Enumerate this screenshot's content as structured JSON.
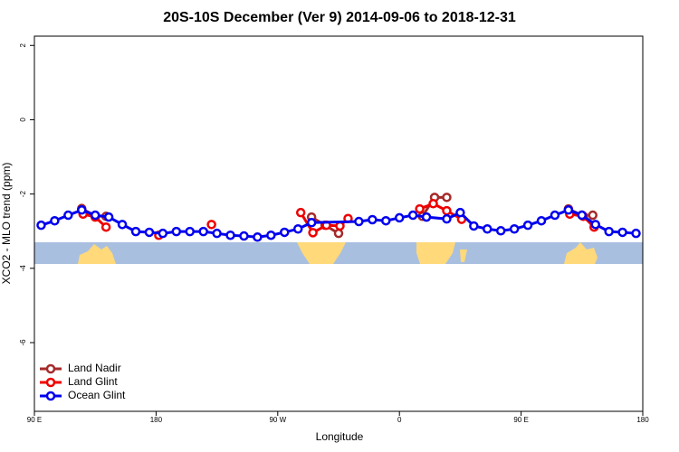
{
  "chart_data": {
    "type": "line",
    "title": "20S-10S December (Ver 9)   2014-09-06 to 2018-12-31",
    "x_label": "Longitude",
    "y_label": "XCO2 - MLO trend (ppm)",
    "xlim": [
      90,
      540
    ],
    "ylim": [
      -7.85,
      2.25
    ],
    "xticks": [
      {
        "value": 90,
        "label": "90 E"
      },
      180,
      {
        "value": 270,
        "label": "90 W"
      },
      {
        "value": 360,
        "label": "0"
      },
      {
        "value": 450,
        "label": "90 E"
      },
      180
    ],
    "yticks": [
      2,
      0,
      -2,
      -4,
      -6
    ],
    "legend": "bottom-left",
    "series": [
      {
        "name": "Land Nadir",
        "color": "#a52a2a",
        "x": [
          125,
          135,
          143,
          null,
          295,
          305,
          315,
          null,
          377,
          386,
          395,
          null,
          485,
          495,
          503
        ],
        "values": [
          -2.39,
          -2.59,
          -2.6,
          null,
          -2.62,
          -2.84,
          -3.06,
          null,
          -2.6,
          -2.09,
          -2.09,
          null,
          -2.4,
          -2.57,
          -2.57
        ]
      },
      {
        "name": "Land Glint",
        "color": "#ee0000",
        "x": [
          126,
          135,
          143,
          null,
          182,
          null,
          221,
          null,
          287,
          296,
          306,
          316,
          322,
          null,
          375,
          385,
          395,
          406,
          null,
          486,
          496,
          504
        ],
        "values": [
          -2.54,
          -2.62,
          -2.89,
          null,
          -3.11,
          null,
          -2.82,
          null,
          -2.5,
          -3.04,
          -2.84,
          -2.86,
          -2.66,
          null,
          -2.4,
          -2.26,
          -2.45,
          -2.68,
          null,
          -2.54,
          -2.6,
          -2.89
        ]
      },
      {
        "name": "Ocean Glint",
        "color": "#0000ee",
        "x": [
          95,
          105,
          115,
          125,
          135,
          145,
          155,
          165,
          175,
          185,
          195,
          205,
          215,
          225,
          235,
          245,
          255,
          265,
          275,
          285,
          295,
          330,
          340,
          350,
          360,
          370,
          380,
          395,
          405,
          415,
          425,
          435,
          445,
          455,
          465,
          475,
          485,
          495,
          505,
          515,
          525,
          535
        ],
        "values": [
          -2.84,
          -2.72,
          -2.57,
          -2.43,
          -2.57,
          -2.62,
          -2.82,
          -3.01,
          -3.03,
          -3.06,
          -3.01,
          -3.01,
          -3.01,
          -3.06,
          -3.11,
          -3.13,
          -3.16,
          -3.11,
          -3.03,
          -2.94,
          -2.77,
          -2.74,
          -2.69,
          -2.72,
          -2.64,
          -2.57,
          -2.62,
          -2.67,
          -2.5,
          -2.86,
          -2.94,
          -2.99,
          -2.94,
          -2.84,
          -2.72,
          -2.57,
          -2.43,
          -2.57,
          -2.82,
          -3.01,
          -3.03,
          -3.06
        ]
      }
    ]
  }
}
